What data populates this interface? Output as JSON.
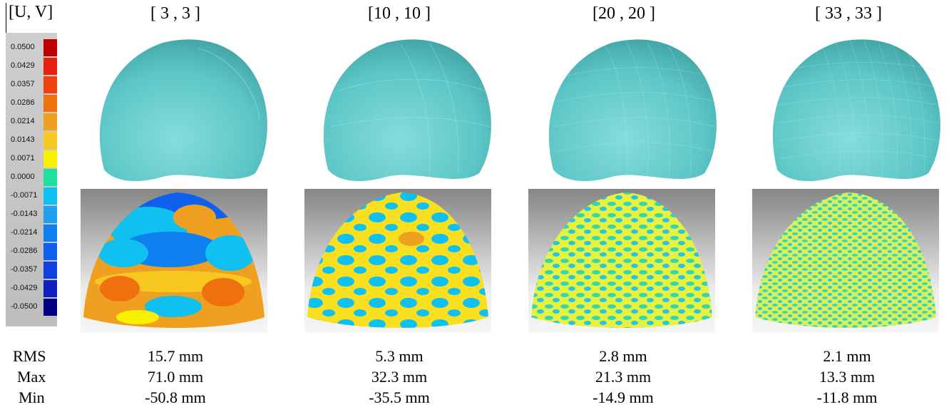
{
  "header": {
    "uv_label": "[U, V]"
  },
  "columns": [
    {
      "title": "[ 3 , 3 ]",
      "rms": "15.7 mm",
      "max": "71.0 mm",
      "min": "-50.8 mm"
    },
    {
      "title": "[10 , 10 ]",
      "rms": "5.3 mm",
      "max": "32.3 mm",
      "min": "-35.5 mm"
    },
    {
      "title": "[20 , 20 ]",
      "rms": "2.8 mm",
      "max": "21.3 mm",
      "min": "-14.9 mm"
    },
    {
      "title": "[ 33 , 33 ]",
      "rms": "2.1 mm",
      "max": "13.3 mm",
      "min": "-11.8 mm"
    }
  ],
  "stats_labels": {
    "rms": "RMS",
    "max": "Max",
    "min": "Min"
  },
  "color_scale": {
    "ticks": [
      "0.0500",
      "0.0429",
      "0.0357",
      "0.0286",
      "0.0214",
      "0.0143",
      "0.0071",
      "0.0000",
      "-0.0071",
      "-0.0143",
      "-0.0214",
      "-0.0286",
      "-0.0357",
      "-0.0429",
      "-0.0500"
    ],
    "colors": [
      "#c00000",
      "#e82010",
      "#f04010",
      "#f07010",
      "#f0a020",
      "#f8c820",
      "#f8f000",
      "#20e0a0",
      "#10c0f0",
      "#20a0f0",
      "#1080f0",
      "#1060f0",
      "#1040e0",
      "#1020c0",
      "#000080"
    ]
  },
  "colors": {
    "surface": "#5cc6c6",
    "surface_dark": "#3a9a9c",
    "mesh_line": "#b8e8ea"
  }
}
